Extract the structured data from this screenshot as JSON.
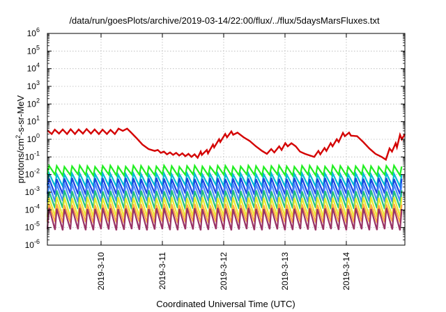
{
  "chart_data": {
    "type": "line",
    "title": "/data/run/goesPlots/archive/2019-03-14/22:00/flux/../flux/5daysMarsFluxes.txt",
    "xlabel": "Coordinated Universal Time (UTC)",
    "ylabel": {
      "prefix": "protons/cm",
      "sup": "2",
      "suffix": "-s-sr-MeV"
    },
    "x_start": "2019-03-09 03:00",
    "x_end": "2019-03-14 23:00",
    "xlim": [
      0,
      5.83
    ],
    "x_ticks": [
      {
        "x": 0.875,
        "label": "2019-3-10"
      },
      {
        "x": 1.875,
        "label": "2019-3-11"
      },
      {
        "x": 2.875,
        "label": "2019-3-12"
      },
      {
        "x": 3.875,
        "label": "2019-3-13"
      },
      {
        "x": 4.875,
        "label": "2019-3-14"
      }
    ],
    "y_scale": "log",
    "ylim": [
      1e-06,
      1000000.0
    ],
    "y_ticks": [
      {
        "exp": -6,
        "base": "10",
        "sup": "-6"
      },
      {
        "exp": -5,
        "base": "10",
        "sup": "-5"
      },
      {
        "exp": -4,
        "base": "10",
        "sup": "-4"
      },
      {
        "exp": -3,
        "base": "10",
        "sup": "-3"
      },
      {
        "exp": -2,
        "base": "10",
        "sup": "-2"
      },
      {
        "exp": -1,
        "base": "10",
        "sup": "-1"
      },
      {
        "exp": 0,
        "base": "10",
        "sup": "0"
      },
      {
        "exp": 1,
        "base": "10",
        "sup": "1"
      },
      {
        "exp": 2,
        "base": "10",
        "sup": "2"
      },
      {
        "exp": 3,
        "base": "10",
        "sup": "3"
      },
      {
        "exp": 4,
        "base": "10",
        "sup": "4"
      },
      {
        "exp": 5,
        "base": "10",
        "sup": "5"
      },
      {
        "exp": 6,
        "base": "10",
        "sup": "6"
      }
    ],
    "grid": true,
    "series": [
      {
        "color": "#d40000",
        "style": "line",
        "points": [
          [
            0.0,
            3.2
          ],
          [
            0.07,
            2.0
          ],
          [
            0.12,
            3.5
          ],
          [
            0.19,
            2.1
          ],
          [
            0.25,
            3.6
          ],
          [
            0.32,
            2.0
          ],
          [
            0.38,
            3.7
          ],
          [
            0.45,
            2.0
          ],
          [
            0.51,
            3.6
          ],
          [
            0.58,
            2.1
          ],
          [
            0.64,
            3.8
          ],
          [
            0.71,
            2.1
          ],
          [
            0.77,
            3.6
          ],
          [
            0.84,
            2.0
          ],
          [
            0.9,
            3.5
          ],
          [
            0.97,
            2.0
          ],
          [
            1.03,
            3.4
          ],
          [
            1.1,
            2.0
          ],
          [
            1.16,
            4.0
          ],
          [
            1.23,
            3.0
          ],
          [
            1.3,
            4.0
          ],
          [
            1.36,
            2.5
          ],
          [
            1.45,
            1.2
          ],
          [
            1.55,
            0.5
          ],
          [
            1.65,
            0.28
          ],
          [
            1.75,
            0.22
          ],
          [
            1.8,
            0.25
          ],
          [
            1.85,
            0.17
          ],
          [
            1.9,
            0.2
          ],
          [
            1.95,
            0.14
          ],
          [
            2.0,
            0.18
          ],
          [
            2.05,
            0.13
          ],
          [
            2.1,
            0.17
          ],
          [
            2.15,
            0.12
          ],
          [
            2.2,
            0.16
          ],
          [
            2.25,
            0.11
          ],
          [
            2.3,
            0.15
          ],
          [
            2.35,
            0.1
          ],
          [
            2.4,
            0.14
          ],
          [
            2.45,
            0.09
          ],
          [
            2.5,
            0.2
          ],
          [
            2.52,
            0.13
          ],
          [
            2.6,
            0.25
          ],
          [
            2.62,
            0.16
          ],
          [
            2.7,
            0.5
          ],
          [
            2.72,
            0.35
          ],
          [
            2.8,
            1.0
          ],
          [
            2.82,
            0.7
          ],
          [
            2.9,
            2.0
          ],
          [
            2.93,
            1.3
          ],
          [
            3.0,
            2.8
          ],
          [
            3.03,
            1.8
          ],
          [
            3.1,
            2.4
          ],
          [
            3.2,
            1.3
          ],
          [
            3.3,
            0.8
          ],
          [
            3.4,
            0.4
          ],
          [
            3.5,
            0.22
          ],
          [
            3.58,
            0.15
          ],
          [
            3.65,
            0.28
          ],
          [
            3.7,
            0.18
          ],
          [
            3.78,
            0.4
          ],
          [
            3.82,
            0.25
          ],
          [
            3.88,
            0.6
          ],
          [
            3.92,
            0.4
          ],
          [
            3.98,
            0.6
          ],
          [
            4.05,
            0.4
          ],
          [
            4.12,
            0.2
          ],
          [
            4.2,
            0.15
          ],
          [
            4.28,
            0.12
          ],
          [
            4.35,
            0.1
          ],
          [
            4.42,
            0.22
          ],
          [
            4.45,
            0.14
          ],
          [
            4.52,
            0.32
          ],
          [
            4.55,
            0.22
          ],
          [
            4.62,
            0.6
          ],
          [
            4.65,
            0.4
          ],
          [
            4.72,
            1.0
          ],
          [
            4.75,
            0.7
          ],
          [
            4.82,
            2.3
          ],
          [
            4.85,
            1.5
          ],
          [
            4.92,
            2.4
          ],
          [
            4.95,
            1.6
          ],
          [
            5.05,
            1.5
          ],
          [
            5.15,
            0.7
          ],
          [
            5.25,
            0.3
          ],
          [
            5.35,
            0.15
          ],
          [
            5.45,
            0.1
          ],
          [
            5.52,
            0.07
          ],
          [
            5.58,
            0.3
          ],
          [
            5.62,
            0.2
          ],
          [
            5.68,
            0.6
          ],
          [
            5.7,
            0.35
          ],
          [
            5.75,
            1.8
          ],
          [
            5.78,
            1.0
          ],
          [
            5.83,
            2.0
          ]
        ]
      },
      {
        "color": "#22ee22",
        "style": "sawtooth",
        "period": 0.125,
        "low": 0.0095,
        "high": 0.03
      },
      {
        "color": "#00bcd4",
        "style": "sawtooth",
        "period": 0.125,
        "low": 0.0023,
        "high": 0.011
      },
      {
        "color": "#1a44e0",
        "style": "sawtooth",
        "period": 0.125,
        "low": 0.0008,
        "high": 0.006
      },
      {
        "color": "#4a8cff",
        "style": "sawtooth",
        "period": 0.125,
        "low": 0.0003,
        "high": 0.003
      },
      {
        "color": "#22c080",
        "style": "sawtooth",
        "period": 0.125,
        "low": 0.00012,
        "high": 0.0012
      },
      {
        "color": "#e8e832",
        "style": "sawtooth",
        "period": 0.125,
        "low": 4e-05,
        "high": 0.0005
      },
      {
        "color": "#ffaa44",
        "style": "sawtooth",
        "period": 0.125,
        "low": 2e-05,
        "high": 0.0002
      },
      {
        "color": "#993366",
        "style": "sawtooth",
        "period": 0.125,
        "low": 7.5e-06,
        "high": 0.00012
      }
    ]
  }
}
